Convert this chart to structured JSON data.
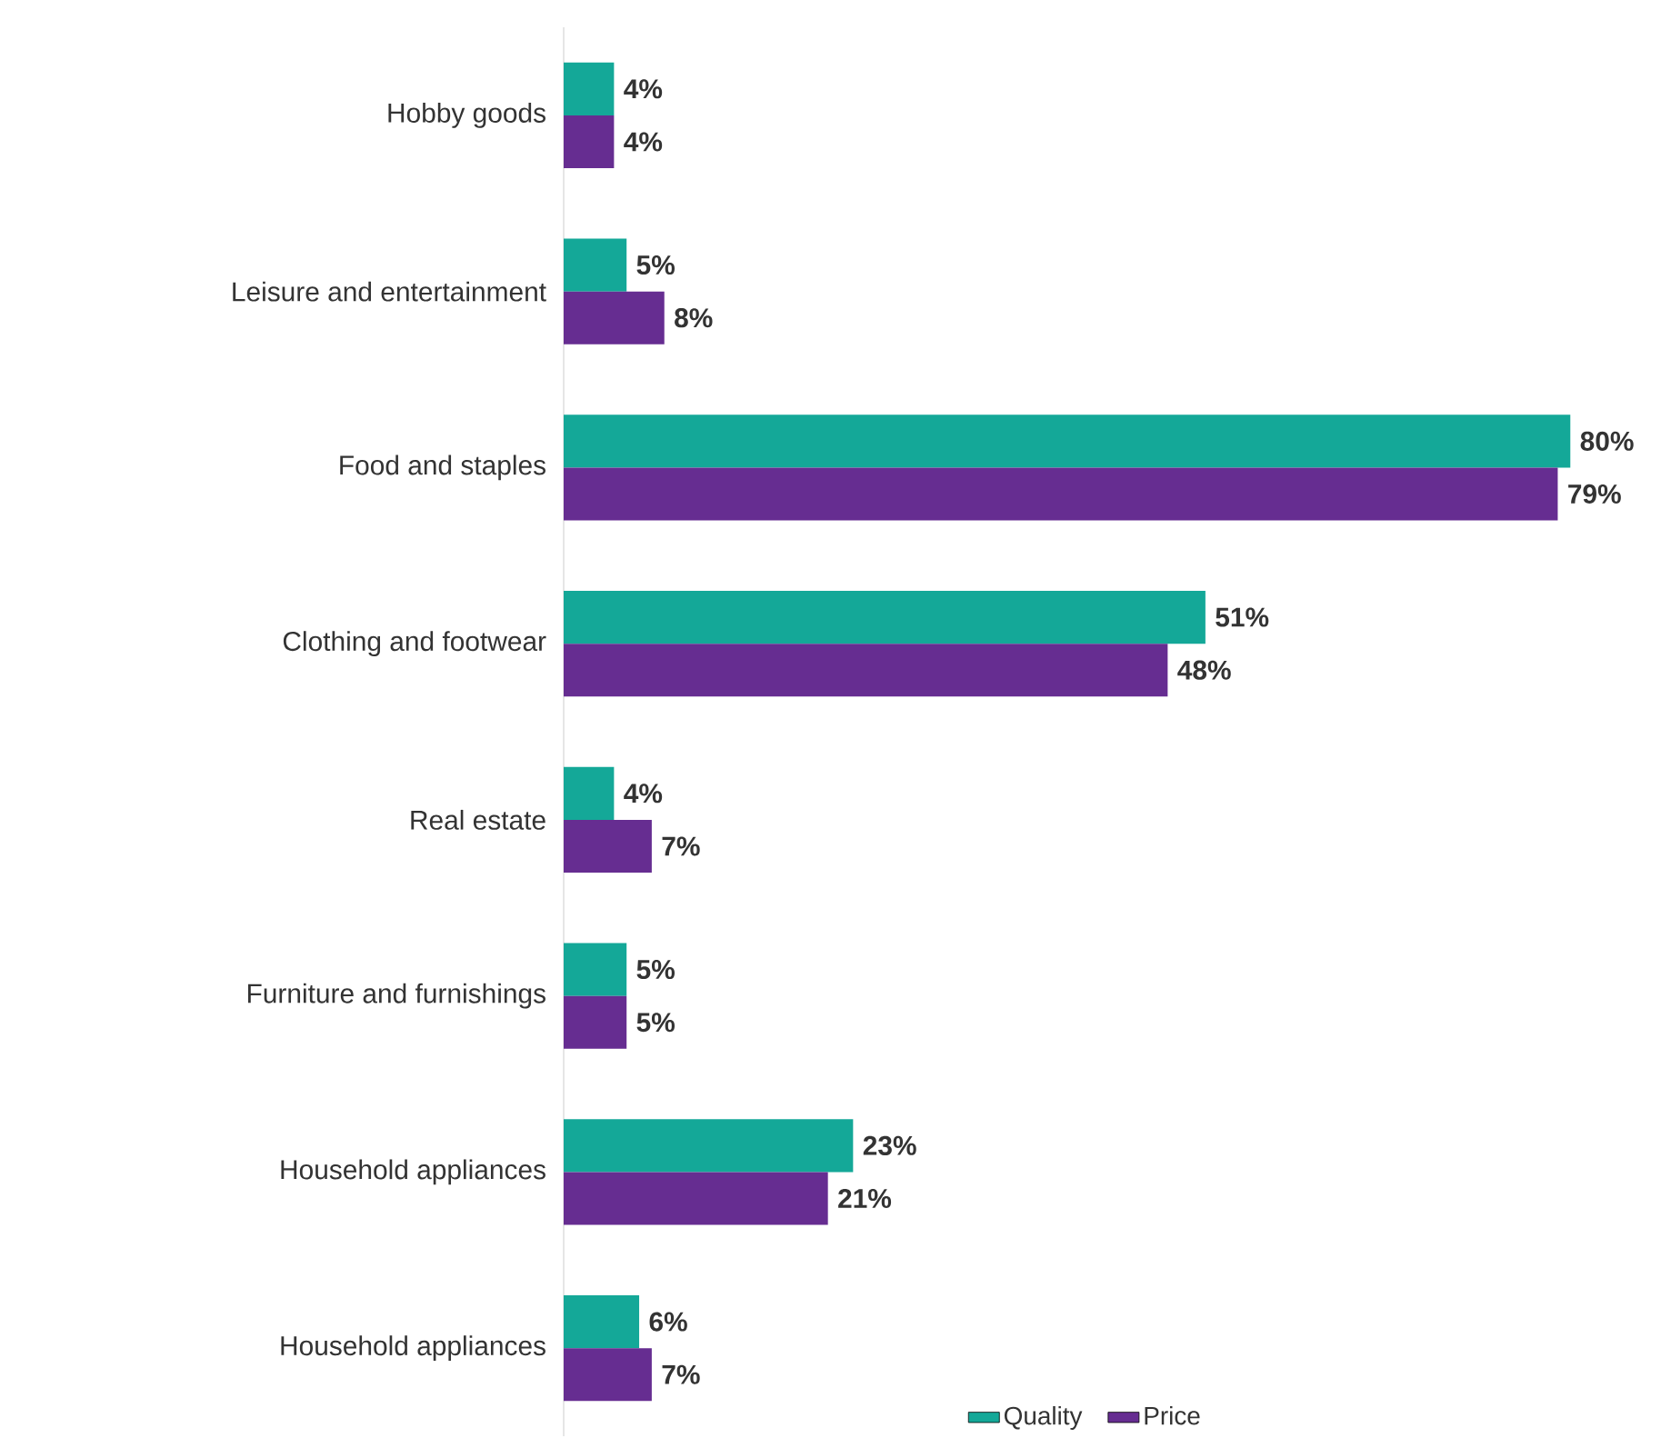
{
  "chart_data": {
    "type": "bar",
    "orientation": "horizontal",
    "categories": [
      "Hobby goods",
      "Leisure and entertainment",
      "Food and staples",
      "Clothing and footwear",
      "Real estate",
      "Furniture and furnishings",
      "Household appliances",
      "Household appliances"
    ],
    "series": [
      {
        "name": "Quality",
        "color": "#14a898",
        "values": [
          4,
          5,
          80,
          51,
          4,
          5,
          23,
          6
        ],
        "value_labels": [
          "4%",
          "5%",
          "80%",
          "51%",
          "4%",
          "5%",
          "23%",
          "6%"
        ]
      },
      {
        "name": "Price",
        "color": "#662d91",
        "values": [
          4,
          8,
          79,
          48,
          7,
          5,
          21,
          7
        ],
        "value_labels": [
          "4%",
          "8%",
          "79%",
          "48%",
          "7%",
          "5%",
          "21%",
          "7%"
        ]
      }
    ],
    "legend": "bottom right"
  }
}
